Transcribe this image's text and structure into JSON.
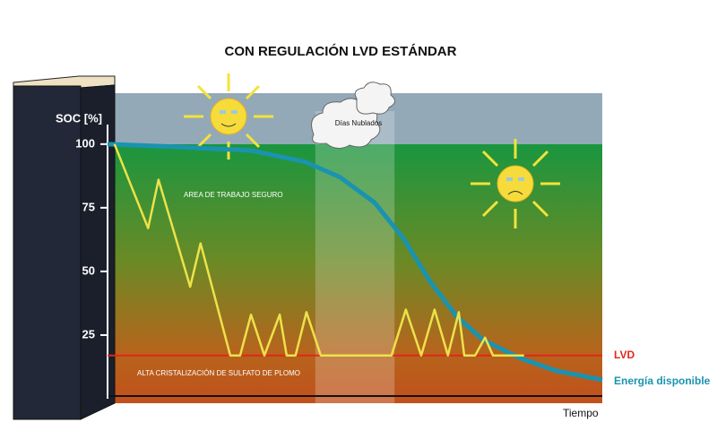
{
  "chart_data": {
    "type": "line",
    "title": "CON REGULACIÓN LVD ESTÁNDAR",
    "y_label": "SOC [%]",
    "x_label": "Tiempo",
    "ylim": [
      0,
      120
    ],
    "xlim": [
      0,
      100
    ],
    "yticks": [
      25,
      50,
      75,
      100
    ],
    "safe_zone_label": "AREA DE TRABAJO SEGURO",
    "danger_zone_label": "ALTA CRISTALIZACIÓN DE SULFATO DE PLOMO",
    "cloudy_label": "Días Nublados",
    "cloudy_band": [
      42,
      58
    ],
    "lvd": {
      "label": "LVD",
      "value": 17,
      "color": "#e3261b"
    },
    "series": [
      {
        "color": "#ede24a",
        "x": [
          1.4,
          8.2,
          10.3,
          16.7,
          18.8,
          24.8,
          26.8,
          29,
          31.7,
          34.8,
          36.2,
          38,
          40.2,
          43.1,
          57.4,
          60.3,
          63.4,
          66.1,
          68.8,
          71,
          72.1,
          74.3,
          76.3,
          77.9,
          84.2
        ],
        "values": [
          100,
          67,
          86,
          44,
          61,
          17,
          17,
          33,
          17,
          33,
          17,
          17,
          34,
          17,
          17,
          35,
          17,
          35,
          17,
          34,
          17,
          17,
          24,
          17,
          17
        ]
      },
      {
        "name": "Energía disponible",
        "color": "#1a93b0",
        "x": [
          0,
          12.7,
          29,
          40,
          47,
          54,
          59.8,
          65.2,
          70.7,
          76,
          83.3,
          90.6,
          100
        ],
        "values": [
          100,
          99,
          97.5,
          93,
          87,
          77,
          63,
          46,
          32,
          23,
          16,
          11,
          7.4
        ]
      }
    ]
  }
}
